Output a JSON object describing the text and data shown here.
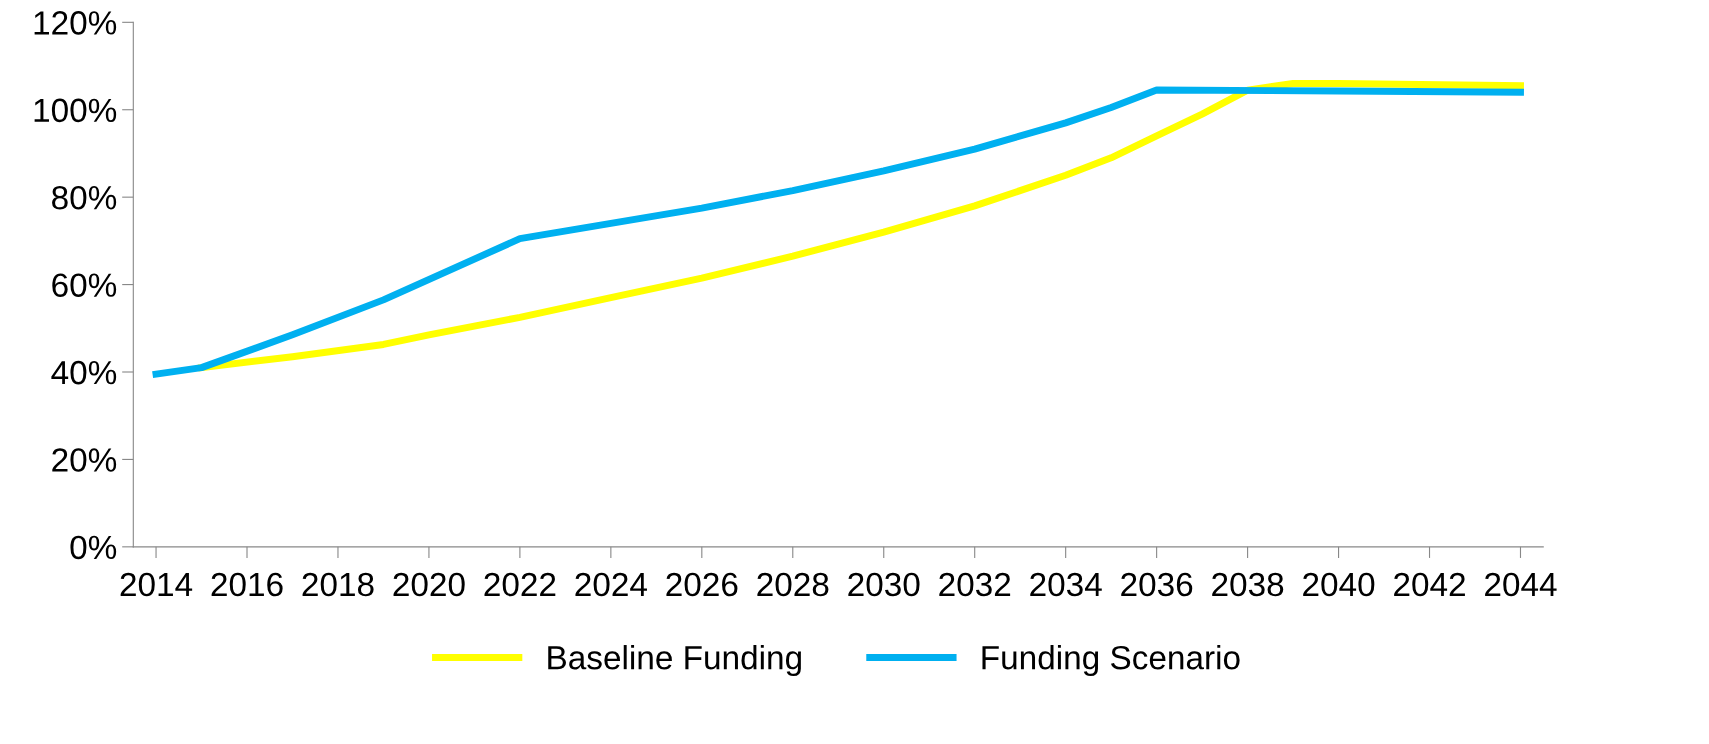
{
  "chart_data": {
    "type": "line",
    "xlim": [
      2013.5,
      2044.5
    ],
    "xticks": [
      2014,
      2016,
      2018,
      2020,
      2022,
      2024,
      2026,
      2028,
      2030,
      2032,
      2034,
      2036,
      2038,
      2040,
      2042,
      2044
    ],
    "ylim": [
      0,
      120
    ],
    "yticks": [
      {
        "value": 0,
        "label": "0%"
      },
      {
        "value": 20,
        "label": "20%"
      },
      {
        "value": 40,
        "label": "40%"
      },
      {
        "value": 60,
        "label": "60%"
      },
      {
        "value": 80,
        "label": "80%"
      },
      {
        "value": 100,
        "label": "100%"
      },
      {
        "value": 120,
        "label": "120%"
      }
    ],
    "grid": false,
    "legend": "bottom",
    "marker": "none",
    "line_style": "solid",
    "series": [
      {
        "name": "Baseline Funding",
        "color": "#ffff00",
        "x": [
          2015,
          2017,
          2019,
          2020,
          2022,
          2024,
          2026,
          2028,
          2030,
          2032,
          2034,
          2035,
          2036,
          2037,
          2038,
          2039,
          2040,
          2044
        ],
        "values": [
          41,
          43.5,
          46.3,
          48.5,
          52.5,
          57,
          61.5,
          66.5,
          72,
          78,
          85,
          89,
          94,
          99,
          104.5,
          106,
          106,
          105.5
        ]
      },
      {
        "name": "Funding Scenario",
        "color": "#00b0f0",
        "x": [
          2014,
          2015,
          2017,
          2019,
          2022,
          2024,
          2026,
          2028,
          2030,
          2032,
          2034,
          2035,
          2036,
          2040,
          2044
        ],
        "values": [
          39.5,
          41,
          48.5,
          56.5,
          70.5,
          74,
          77.5,
          81.5,
          86,
          91,
          97,
          100.5,
          104.5,
          104.3,
          104
        ]
      }
    ]
  }
}
